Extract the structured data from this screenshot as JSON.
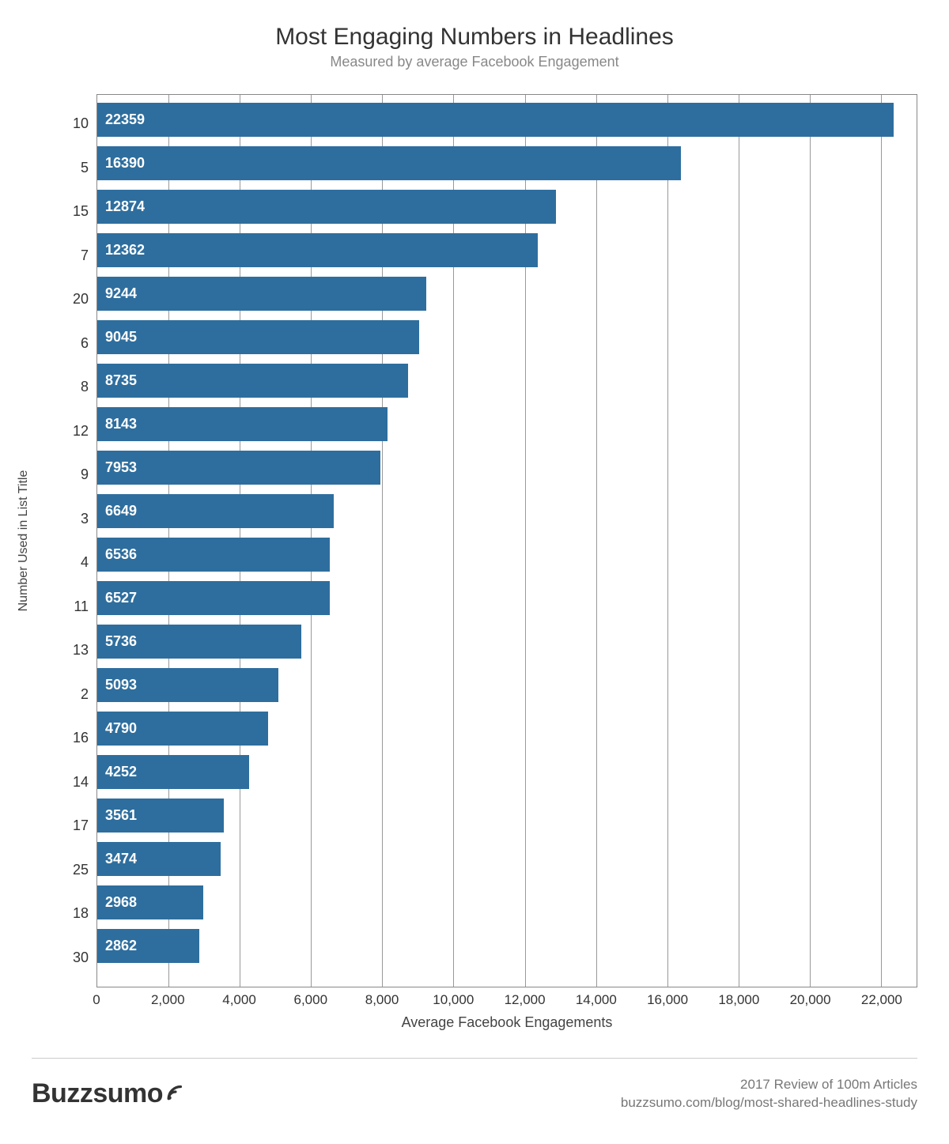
{
  "title": "Most Engaging Numbers in Headlines",
  "subtitle": "Measured by average Facebook Engagement",
  "chart": {
    "type": "horizontal-bar",
    "y_axis_label": "Number Used in List Title",
    "x_axis_label": "Average Facebook Engagements",
    "bar_color": "#2e6e9e",
    "value_label_color": "#ffffff",
    "value_label_fontsize": 18,
    "value_label_fontweight": 700,
    "category_label_fontsize": 18,
    "axis_label_fontsize": 16,
    "title_fontsize": 30,
    "subtitle_fontsize": 18,
    "subtitle_color": "#888888",
    "border_color": "#888888",
    "gridline_color": "#999999",
    "background_color": "#ffffff",
    "x_min": 0,
    "x_max": 23000,
    "x_ticks": [
      {
        "value": 0,
        "label": "0"
      },
      {
        "value": 2000,
        "label": "2,000"
      },
      {
        "value": 4000,
        "label": "4,000"
      },
      {
        "value": 6000,
        "label": "6,000"
      },
      {
        "value": 8000,
        "label": "8,000"
      },
      {
        "value": 10000,
        "label": "10,000"
      },
      {
        "value": 12000,
        "label": "12,000"
      },
      {
        "value": 14000,
        "label": "14,000"
      },
      {
        "value": 16000,
        "label": "16,000"
      },
      {
        "value": 18000,
        "label": "18,000"
      },
      {
        "value": 20000,
        "label": "20,000"
      },
      {
        "value": 22000,
        "label": "22,000"
      }
    ],
    "bars": [
      {
        "category": "10",
        "value": 22359
      },
      {
        "category": "5",
        "value": 16390
      },
      {
        "category": "15",
        "value": 12874
      },
      {
        "category": "7",
        "value": 12362
      },
      {
        "category": "20",
        "value": 9244
      },
      {
        "category": "6",
        "value": 9045
      },
      {
        "category": "8",
        "value": 8735
      },
      {
        "category": "12",
        "value": 8143
      },
      {
        "category": "9",
        "value": 7953
      },
      {
        "category": "3",
        "value": 6649
      },
      {
        "category": "4",
        "value": 6536
      },
      {
        "category": "11",
        "value": 6527
      },
      {
        "category": "13",
        "value": 5736
      },
      {
        "category": "2",
        "value": 5093
      },
      {
        "category": "16",
        "value": 4790
      },
      {
        "category": "14",
        "value": 4252
      },
      {
        "category": "17",
        "value": 3561
      },
      {
        "category": "25",
        "value": 3474
      },
      {
        "category": "18",
        "value": 2968
      },
      {
        "category": "30",
        "value": 2862
      }
    ]
  },
  "footer": {
    "brand": "Buzzsumo",
    "brand_icon_color": "#333333",
    "line1": "2017 Review of 100m Articles",
    "line2": "buzzsumo.com/blog/most-shared-headlines-study"
  }
}
